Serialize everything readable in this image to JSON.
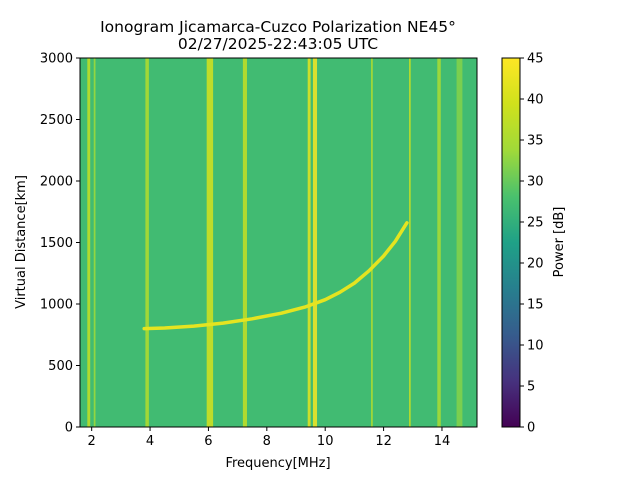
{
  "chart_data": {
    "type": "heatmap",
    "title_line1": "Ionogram Jicamarca-Cuzco Polarization NE45°",
    "title_line2": "02/27/2025-22:43:05 UTC",
    "xlabel": "Frequency[MHz]",
    "ylabel": "Virtual Distance[km]",
    "colorbar_label": "Power [dB]",
    "colormap": "viridis",
    "xlim": [
      1.6,
      15.2
    ],
    "ylim": [
      0,
      3000
    ],
    "clim": [
      0,
      45
    ],
    "x_ticks": [
      2,
      4,
      6,
      8,
      10,
      12,
      14
    ],
    "x_tick_labels": [
      "2",
      "4",
      "6",
      "8",
      "10",
      "12",
      "14"
    ],
    "y_ticks": [
      0,
      500,
      1000,
      1500,
      2000,
      2500,
      3000
    ],
    "y_tick_labels": [
      "0",
      "500",
      "1000",
      "1500",
      "2000",
      "2500",
      "3000"
    ],
    "colorbar_ticks": [
      0,
      5,
      10,
      15,
      20,
      25,
      30,
      35,
      40,
      45
    ],
    "colorbar_tick_labels": [
      "0",
      "5",
      "10",
      "15",
      "20",
      "25",
      "30",
      "35",
      "40",
      "45"
    ],
    "background_level_db": 27,
    "vertical_bands": [
      {
        "f": 1.9,
        "width": 0.1,
        "power": 38
      },
      {
        "f": 2.1,
        "width": 0.06,
        "power": 34
      },
      {
        "f": 3.9,
        "width": 0.12,
        "power": 36
      },
      {
        "f": 6.05,
        "width": 0.22,
        "power": 40
      },
      {
        "f": 7.25,
        "width": 0.14,
        "power": 38
      },
      {
        "f": 9.45,
        "width": 0.1,
        "power": 42
      },
      {
        "f": 9.65,
        "width": 0.14,
        "power": 44
      },
      {
        "f": 11.6,
        "width": 0.06,
        "power": 36
      },
      {
        "f": 12.9,
        "width": 0.06,
        "power": 38
      },
      {
        "f": 13.9,
        "width": 0.12,
        "power": 35
      },
      {
        "f": 14.6,
        "width": 0.2,
        "power": 32
      }
    ],
    "trace_f_layer": {
      "x": [
        3.8,
        4.5,
        5.5,
        6.5,
        7.5,
        8.5,
        9.3,
        10.0,
        10.5,
        11.0,
        11.5,
        12.0,
        12.4,
        12.8
      ],
      "y": [
        800,
        805,
        820,
        845,
        880,
        925,
        975,
        1035,
        1095,
        1170,
        1270,
        1390,
        1510,
        1660
      ],
      "power": 42
    }
  }
}
